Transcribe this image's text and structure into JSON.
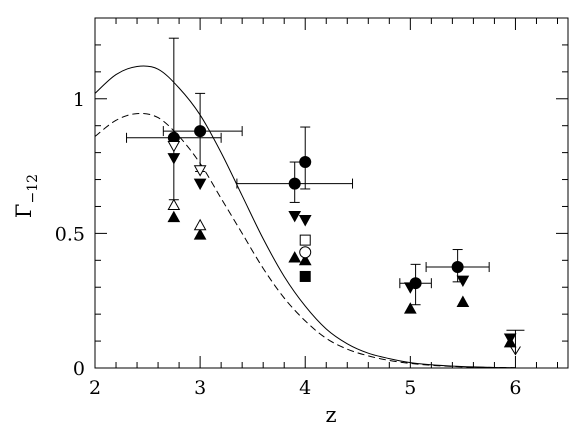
{
  "chart_data": {
    "type": "scatter",
    "title": "",
    "xlabel": "z",
    "ylabel": "Γ",
    "ylabel_subscript": "−12",
    "xlim": [
      2,
      6.5
    ],
    "ylim": [
      0,
      1.3
    ],
    "grid": false,
    "x_ticks": [
      {
        "value": 2,
        "label": "2"
      },
      {
        "value": 3,
        "label": "3"
      },
      {
        "value": 4,
        "label": "4"
      },
      {
        "value": 5,
        "label": "5"
      },
      {
        "value": 6,
        "label": "6"
      }
    ],
    "y_ticks": [
      {
        "value": 0,
        "label": "0"
      },
      {
        "value": 0.5,
        "label": "0.5"
      },
      {
        "value": 1,
        "label": "1"
      }
    ],
    "x_minor_step": 0.2,
    "y_minor_step": 0.1,
    "curves": [
      {
        "style": "solid",
        "x": [
          2.0,
          2.2,
          2.4,
          2.6,
          2.8,
          3.0,
          3.2,
          3.4,
          3.6,
          3.8,
          4.0,
          4.2,
          4.4,
          4.6,
          4.8,
          5.0,
          5.2,
          5.4,
          5.6,
          5.8,
          6.0
        ],
        "y": [
          1.02,
          1.09,
          1.12,
          1.11,
          1.04,
          0.94,
          0.8,
          0.64,
          0.48,
          0.34,
          0.23,
          0.145,
          0.09,
          0.055,
          0.035,
          0.02,
          0.012,
          0.007,
          0.004,
          0.002,
          0.001
        ]
      },
      {
        "style": "dashed",
        "x": [
          2.0,
          2.2,
          2.4,
          2.6,
          2.8,
          3.0,
          3.2,
          3.4,
          3.6,
          3.8,
          4.0,
          4.2,
          4.4,
          4.6,
          4.8,
          5.0,
          5.2,
          5.4,
          5.6,
          5.8,
          6.0
        ],
        "y": [
          0.86,
          0.92,
          0.945,
          0.93,
          0.86,
          0.76,
          0.63,
          0.5,
          0.37,
          0.26,
          0.175,
          0.11,
          0.07,
          0.045,
          0.028,
          0.017,
          0.01,
          0.006,
          0.003,
          0.002,
          0.001
        ]
      }
    ],
    "points": [
      {
        "marker": "filled-circle",
        "x": 2.75,
        "y": 0.855,
        "xerr": [
          0.45,
          0.45
        ],
        "yerr": [
          0.23,
          0.37
        ]
      },
      {
        "marker": "filled-circle",
        "x": 3.0,
        "y": 0.88,
        "xerr": [
          0.35,
          0.4
        ],
        "yerr": [
          0.15,
          0.14
        ]
      },
      {
        "marker": "filled-circle",
        "x": 3.9,
        "y": 0.685,
        "xerr": [
          0.55,
          0.55
        ],
        "yerr": [
          0.07,
          0.08
        ]
      },
      {
        "marker": "filled-circle",
        "x": 4.0,
        "y": 0.765,
        "xerr": [
          0.0,
          0.0
        ],
        "yerr": [
          0.1,
          0.13
        ]
      },
      {
        "marker": "filled-circle",
        "x": 5.05,
        "y": 0.315,
        "xerr": [
          0.15,
          0.15
        ],
        "yerr": [
          0.08,
          0.07
        ]
      },
      {
        "marker": "filled-circle",
        "x": 5.45,
        "y": 0.375,
        "xerr": [
          0.3,
          0.3
        ],
        "yerr": [
          0.055,
          0.065
        ]
      },
      {
        "marker": "filled-down-triangle",
        "x": 2.75,
        "y": 0.78
      },
      {
        "marker": "filled-down-triangle",
        "x": 3.0,
        "y": 0.685
      },
      {
        "marker": "filled-down-triangle",
        "x": 3.9,
        "y": 0.565
      },
      {
        "marker": "filled-down-triangle",
        "x": 4.0,
        "y": 0.55
      },
      {
        "marker": "filled-down-triangle",
        "x": 5.0,
        "y": 0.3
      },
      {
        "marker": "filled-down-triangle",
        "x": 5.5,
        "y": 0.325
      },
      {
        "marker": "filled-down-triangle",
        "x": 5.95,
        "y": 0.11
      },
      {
        "marker": "filled-up-triangle",
        "x": 2.75,
        "y": 0.56
      },
      {
        "marker": "filled-up-triangle",
        "x": 3.0,
        "y": 0.495
      },
      {
        "marker": "filled-up-triangle",
        "x": 3.9,
        "y": 0.41
      },
      {
        "marker": "filled-up-triangle",
        "x": 4.0,
        "y": 0.4
      },
      {
        "marker": "filled-up-triangle",
        "x": 5.0,
        "y": 0.22
      },
      {
        "marker": "filled-up-triangle",
        "x": 5.5,
        "y": 0.245
      },
      {
        "marker": "filled-up-triangle",
        "x": 5.95,
        "y": 0.095
      },
      {
        "marker": "open-up-triangle",
        "x": 2.75,
        "y": 0.605
      },
      {
        "marker": "open-up-triangle",
        "x": 3.0,
        "y": 0.53
      },
      {
        "marker": "open-down-triangle",
        "x": 2.75,
        "y": 0.825
      },
      {
        "marker": "open-down-triangle",
        "x": 3.0,
        "y": 0.735
      },
      {
        "marker": "open-circle",
        "x": 4.0,
        "y": 0.43
      },
      {
        "marker": "open-square",
        "x": 4.0,
        "y": 0.475
      },
      {
        "marker": "filled-square",
        "x": 4.0,
        "y": 0.34
      }
    ],
    "upper_limits": [
      {
        "x": 6.0,
        "y": 0.14,
        "y_to": 0.05
      }
    ]
  }
}
